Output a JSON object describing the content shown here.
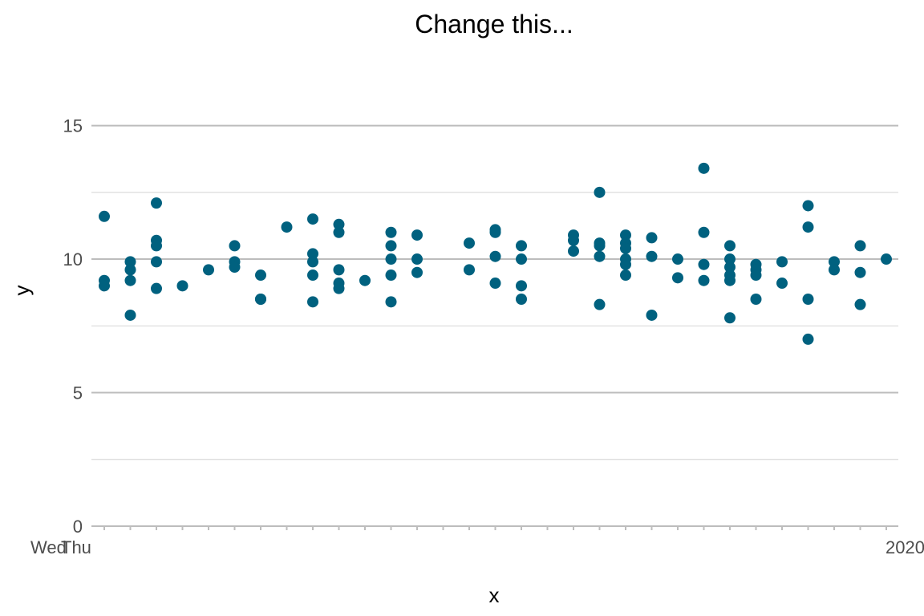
{
  "chart_data": {
    "type": "scatter",
    "title": "Change this...",
    "xlabel": "x",
    "ylabel": "y",
    "ylim": [
      0,
      17.3
    ],
    "yticks": [
      0,
      5,
      10,
      15
    ],
    "grid": true,
    "point_color": "#00617f",
    "x_tick_count": 31,
    "x_tick_labels_note": "31 date labels overlapping into illegible text; visible fragments include 'Wed', 'Thu', '2020'",
    "x_tick_label_first": "Wed",
    "x_tick_label_second": "Thu",
    "x_tick_label_last": "2020",
    "points": [
      {
        "x": 1,
        "y": 11.6
      },
      {
        "x": 1,
        "y": 9.2
      },
      {
        "x": 1,
        "y": 9.0
      },
      {
        "x": 2,
        "y": 9.9
      },
      {
        "x": 2,
        "y": 9.6
      },
      {
        "x": 2,
        "y": 9.2
      },
      {
        "x": 2,
        "y": 7.9
      },
      {
        "x": 3,
        "y": 12.1
      },
      {
        "x": 3,
        "y": 10.7
      },
      {
        "x": 3,
        "y": 10.5
      },
      {
        "x": 3,
        "y": 9.9
      },
      {
        "x": 3,
        "y": 8.9
      },
      {
        "x": 4,
        "y": 9.0
      },
      {
        "x": 5,
        "y": 9.6
      },
      {
        "x": 6,
        "y": 10.5
      },
      {
        "x": 6,
        "y": 9.9
      },
      {
        "x": 6,
        "y": 9.7
      },
      {
        "x": 7,
        "y": 9.4
      },
      {
        "x": 7,
        "y": 8.5
      },
      {
        "x": 7,
        "y": 8.5
      },
      {
        "x": 8,
        "y": 11.2
      },
      {
        "x": 9,
        "y": 11.5
      },
      {
        "x": 9,
        "y": 10.2
      },
      {
        "x": 9,
        "y": 9.9
      },
      {
        "x": 9,
        "y": 9.4
      },
      {
        "x": 9,
        "y": 8.4
      },
      {
        "x": 10,
        "y": 11.3
      },
      {
        "x": 10,
        "y": 11.0
      },
      {
        "x": 10,
        "y": 9.6
      },
      {
        "x": 10,
        "y": 9.1
      },
      {
        "x": 10,
        "y": 8.9
      },
      {
        "x": 11,
        "y": 9.2
      },
      {
        "x": 12,
        "y": 11.0
      },
      {
        "x": 12,
        "y": 10.5
      },
      {
        "x": 12,
        "y": 10.0
      },
      {
        "x": 12,
        "y": 9.4
      },
      {
        "x": 12,
        "y": 8.4
      },
      {
        "x": 13,
        "y": 10.9
      },
      {
        "x": 13,
        "y": 10.0
      },
      {
        "x": 13,
        "y": 9.5
      },
      {
        "x": 15,
        "y": 10.6
      },
      {
        "x": 15,
        "y": 9.6
      },
      {
        "x": 16,
        "y": 11.1
      },
      {
        "x": 16,
        "y": 11.0
      },
      {
        "x": 16,
        "y": 10.1
      },
      {
        "x": 16,
        "y": 9.1
      },
      {
        "x": 17,
        "y": 10.5
      },
      {
        "x": 17,
        "y": 10.0
      },
      {
        "x": 17,
        "y": 9.0
      },
      {
        "x": 17,
        "y": 8.5
      },
      {
        "x": 19,
        "y": 10.9
      },
      {
        "x": 19,
        "y": 10.7
      },
      {
        "x": 19,
        "y": 10.3
      },
      {
        "x": 20,
        "y": 12.5
      },
      {
        "x": 20,
        "y": 10.6
      },
      {
        "x": 20,
        "y": 10.5
      },
      {
        "x": 20,
        "y": 10.1
      },
      {
        "x": 20,
        "y": 8.3
      },
      {
        "x": 21,
        "y": 10.9
      },
      {
        "x": 21,
        "y": 10.6
      },
      {
        "x": 21,
        "y": 10.4
      },
      {
        "x": 21,
        "y": 10.0
      },
      {
        "x": 21,
        "y": 9.8
      },
      {
        "x": 21,
        "y": 9.4
      },
      {
        "x": 22,
        "y": 10.8
      },
      {
        "x": 22,
        "y": 10.1
      },
      {
        "x": 22,
        "y": 7.9
      },
      {
        "x": 23,
        "y": 10.0
      },
      {
        "x": 23,
        "y": 9.3
      },
      {
        "x": 24,
        "y": 13.4
      },
      {
        "x": 24,
        "y": 11.0
      },
      {
        "x": 24,
        "y": 9.8
      },
      {
        "x": 24,
        "y": 9.2
      },
      {
        "x": 25,
        "y": 10.5
      },
      {
        "x": 25,
        "y": 10.0
      },
      {
        "x": 25,
        "y": 9.7
      },
      {
        "x": 25,
        "y": 9.4
      },
      {
        "x": 25,
        "y": 9.2
      },
      {
        "x": 25,
        "y": 7.8
      },
      {
        "x": 26,
        "y": 9.8
      },
      {
        "x": 26,
        "y": 9.6
      },
      {
        "x": 26,
        "y": 9.4
      },
      {
        "x": 26,
        "y": 8.5
      },
      {
        "x": 27,
        "y": 9.9
      },
      {
        "x": 27,
        "y": 9.1
      },
      {
        "x": 28,
        "y": 12.0
      },
      {
        "x": 28,
        "y": 11.2
      },
      {
        "x": 28,
        "y": 8.5
      },
      {
        "x": 28,
        "y": 7.0
      },
      {
        "x": 29,
        "y": 9.9
      },
      {
        "x": 29,
        "y": 9.6
      },
      {
        "x": 30,
        "y": 10.5
      },
      {
        "x": 30,
        "y": 9.5
      },
      {
        "x": 30,
        "y": 8.3
      },
      {
        "x": 31,
        "y": 10.0
      }
    ]
  }
}
